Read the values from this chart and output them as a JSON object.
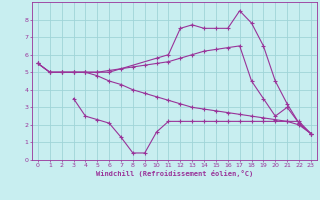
{
  "xlabel": "Windchill (Refroidissement éolien,°C)",
  "xlim": [
    -0.5,
    23.5
  ],
  "ylim": [
    0,
    9
  ],
  "xticks": [
    0,
    1,
    2,
    3,
    4,
    5,
    6,
    7,
    8,
    9,
    10,
    11,
    12,
    13,
    14,
    15,
    16,
    17,
    18,
    19,
    20,
    21,
    22,
    23
  ],
  "yticks": [
    0,
    1,
    2,
    3,
    4,
    5,
    6,
    7,
    8
  ],
  "background_color": "#c8eef0",
  "line_color": "#993399",
  "grid_color": "#a0d4d8",
  "lines": [
    {
      "x": [
        0,
        1,
        2,
        3,
        4,
        5,
        6,
        10,
        11,
        12,
        13,
        14,
        15,
        16,
        17,
        18,
        19,
        20,
        21,
        22,
        23
      ],
      "y": [
        5.5,
        5.0,
        5.0,
        5.0,
        5.0,
        5.0,
        5.0,
        5.8,
        6.0,
        7.5,
        7.7,
        7.5,
        7.5,
        7.5,
        8.5,
        7.8,
        6.5,
        4.5,
        3.2,
        2.1,
        1.5
      ]
    },
    {
      "x": [
        0,
        1,
        2,
        3,
        4,
        5,
        6,
        7,
        8,
        9,
        10,
        11,
        12,
        13,
        14,
        15,
        16,
        17,
        18,
        19,
        20,
        21,
        22,
        23
      ],
      "y": [
        5.5,
        5.0,
        5.0,
        5.0,
        5.0,
        5.0,
        5.1,
        5.2,
        5.3,
        5.4,
        5.5,
        5.6,
        5.8,
        6.0,
        6.2,
        6.3,
        6.4,
        6.5,
        4.5,
        3.5,
        2.5,
        3.0,
        2.1,
        1.5
      ]
    },
    {
      "x": [
        0,
        1,
        2,
        3,
        4,
        5,
        6,
        7,
        8,
        9,
        10,
        11,
        12,
        13,
        14,
        15,
        16,
        17,
        18,
        19,
        20,
        21,
        22,
        23
      ],
      "y": [
        5.5,
        5.0,
        5.0,
        5.0,
        5.0,
        4.8,
        4.5,
        4.3,
        4.0,
        3.8,
        3.6,
        3.4,
        3.2,
        3.0,
        2.9,
        2.8,
        2.7,
        2.6,
        2.5,
        2.4,
        2.3,
        2.2,
        2.0,
        1.5
      ]
    },
    {
      "x": [
        3,
        4,
        5,
        6,
        7,
        8,
        9,
        10,
        11,
        12,
        13,
        14,
        15,
        16,
        17,
        18,
        19,
        20,
        21,
        22,
        23
      ],
      "y": [
        3.5,
        2.5,
        2.3,
        2.1,
        1.3,
        0.4,
        0.4,
        1.6,
        2.2,
        2.2,
        2.2,
        2.2,
        2.2,
        2.2,
        2.2,
        2.2,
        2.2,
        2.2,
        2.2,
        2.2,
        1.5
      ]
    }
  ]
}
